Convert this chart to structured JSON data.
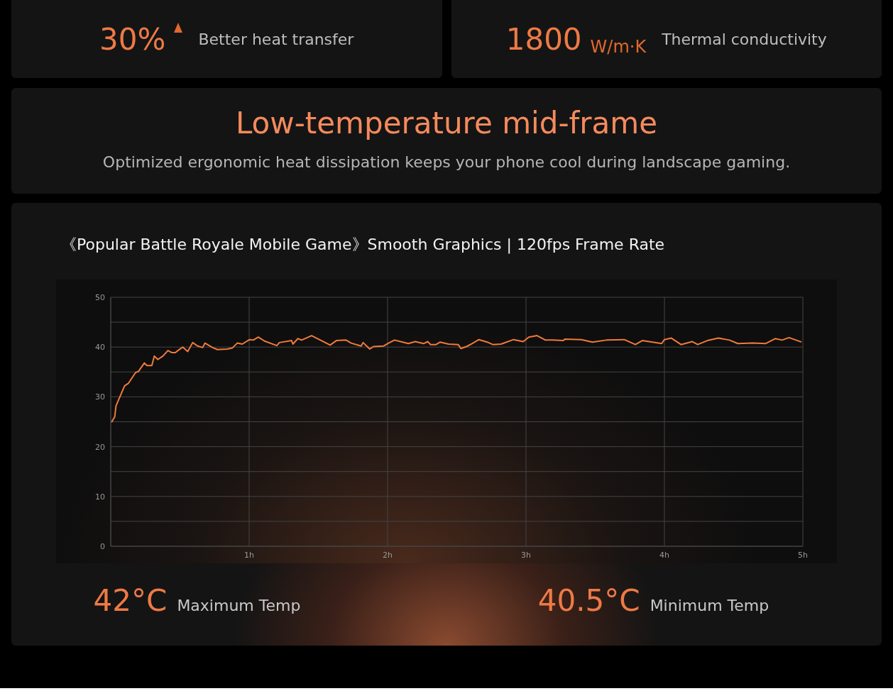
{
  "chart_data": [
    {
      "type": "other",
      "annotations": [
        "30%",
        "Better heat transfer"
      ]
    },
    {
      "type": "other",
      "annotations": [
        "1800",
        "W/m·K",
        "Thermal conductivity"
      ]
    },
    {
      "type": "other",
      "title": "Low-temperature mid-frame",
      "subtitle": "Optimized ergonomic heat dissipation keeps your phone cool during landscape gaming."
    },
    {
      "type": "line",
      "title": "《Popular Battle Royale Mobile Game》Smooth Graphics | 120fps Frame Rate",
      "color": "#f07a3a",
      "marker": "none",
      "line_style": "solid",
      "grid": true,
      "x": [
        0.005,
        0.029,
        0.038,
        0.1,
        0.127,
        0.18,
        0.2,
        0.243,
        0.261,
        0.297,
        0.315,
        0.34,
        0.377,
        0.413,
        0.44,
        0.467,
        0.485,
        0.52,
        0.556,
        0.592,
        0.628,
        0.664,
        0.681,
        0.735,
        0.771,
        0.842,
        0.878,
        0.914,
        0.95,
        1.003,
        1.03,
        1.066,
        1.111,
        1.2,
        1.218,
        1.307,
        1.316,
        1.352,
        1.379,
        1.451,
        1.522,
        1.585,
        1.63,
        1.7,
        1.737,
        1.809,
        1.823,
        1.871,
        1.898,
        1.97,
        2.0,
        2.05,
        2.11,
        2.15,
        2.2,
        2.26,
        2.29,
        2.31,
        2.35,
        2.38,
        2.44,
        2.51,
        2.53,
        2.57,
        2.61,
        2.66,
        2.72,
        2.76,
        2.82,
        2.91,
        2.98,
        3.02,
        3.08,
        3.14,
        3.19,
        3.27,
        3.28,
        3.4,
        3.48,
        3.58,
        3.71,
        3.79,
        3.84,
        3.98,
        4.0,
        4.05,
        4.12,
        4.2,
        4.24,
        4.31,
        4.39,
        4.47,
        4.53,
        4.64,
        4.73,
        4.8,
        4.85,
        4.9,
        4.94,
        4.99
      ],
      "values": [
        24.9,
        26.0,
        28.2,
        32.2,
        32.7,
        34.9,
        35.1,
        36.8,
        36.3,
        36.3,
        38.2,
        37.5,
        38.2,
        39.3,
        38.9,
        38.9,
        39.3,
        40.0,
        39.1,
        40.9,
        40.2,
        39.9,
        40.8,
        39.9,
        39.5,
        39.6,
        39.8,
        40.8,
        40.6,
        41.5,
        41.4,
        42.0,
        41.2,
        40.3,
        40.9,
        41.3,
        40.6,
        41.7,
        41.4,
        42.3,
        41.3,
        40.4,
        41.3,
        41.4,
        40.8,
        40.2,
        40.9,
        39.6,
        40.1,
        40.2,
        40.7,
        41.4,
        41.0,
        40.7,
        41.1,
        40.7,
        41.1,
        40.5,
        40.5,
        41.0,
        40.6,
        40.5,
        39.7,
        40.1,
        40.7,
        41.5,
        41.0,
        40.5,
        40.6,
        41.5,
        41.1,
        42.0,
        42.3,
        41.4,
        41.4,
        41.3,
        41.6,
        41.5,
        41.0,
        41.4,
        41.5,
        40.5,
        41.3,
        40.7,
        41.5,
        41.8,
        40.5,
        41.1,
        40.5,
        41.3,
        41.8,
        41.4,
        40.7,
        40.8,
        40.7,
        41.7,
        41.4,
        41.9,
        41.5,
        41.0
      ],
      "xlim": [
        0,
        5
      ],
      "xticks": [
        {
          "value": 0,
          "label": null
        },
        {
          "value": 1,
          "label": "1h"
        },
        {
          "value": 2,
          "label": "2h"
        },
        {
          "value": 3,
          "label": "3h"
        },
        {
          "value": 4,
          "label": "4h"
        },
        {
          "value": 5,
          "label": "5h"
        }
      ],
      "ylim": [
        0,
        50
      ],
      "yticks": [
        0,
        {
          "value": 5,
          "label": null
        },
        10,
        {
          "value": 15,
          "label": null
        },
        20,
        {
          "value": 25,
          "label": null
        },
        30,
        {
          "value": 35,
          "label": null
        },
        40,
        {
          "value": 45,
          "label": null
        },
        50
      ],
      "annotations": [
        "42°C",
        "Maximum Temp",
        "40.5°C",
        "Minimum Temp"
      ]
    }
  ]
}
